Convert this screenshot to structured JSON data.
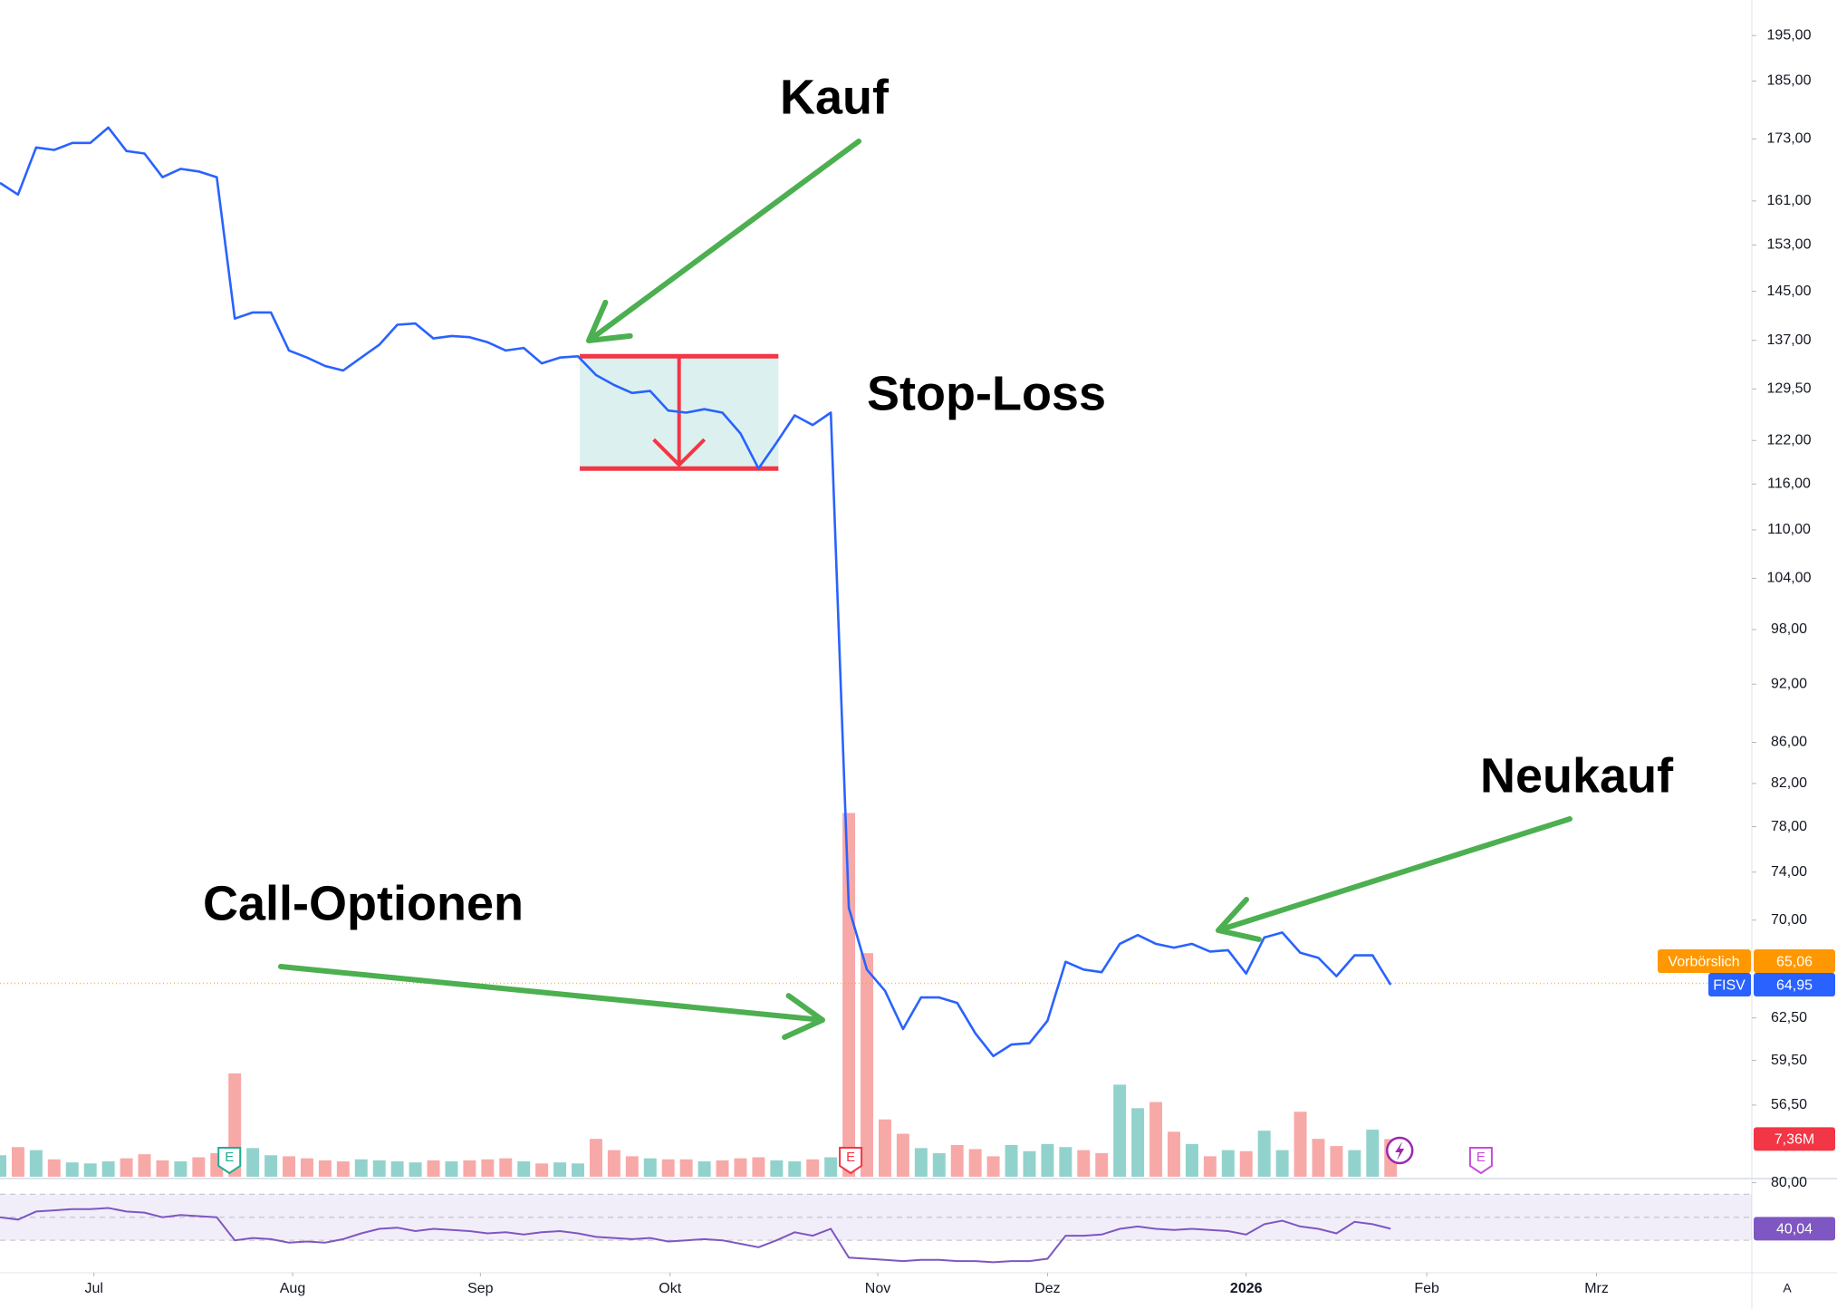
{
  "chart_data": {
    "type": "line",
    "log_scale": true,
    "xlim": [
      0,
      97
    ],
    "xticks": [
      {
        "value": 5.2,
        "label": "Jul"
      },
      {
        "value": 16.2,
        "label": "Aug"
      },
      {
        "value": 26.6,
        "label": "Sep"
      },
      {
        "value": 37.1,
        "label": "Okt"
      },
      {
        "value": 48.6,
        "label": "Nov"
      },
      {
        "value": 58.0,
        "label": "Dez"
      },
      {
        "value": 69.0,
        "label": "2026"
      },
      {
        "value": 79.0,
        "label": "Feb"
      },
      {
        "value": 88.4,
        "label": "Mrz"
      }
    ],
    "ylim": [
      52,
      203.2
    ],
    "yticks": [
      {
        "value": 195,
        "label": "195,00"
      },
      {
        "value": 185,
        "label": "185,00"
      },
      {
        "value": 173,
        "label": "173,00"
      },
      {
        "value": 161,
        "label": "161,00"
      },
      {
        "value": 153,
        "label": "153,00"
      },
      {
        "value": 145,
        "label": "145,00"
      },
      {
        "value": 137,
        "label": "137,00"
      },
      {
        "value": 129.5,
        "label": "129,50"
      },
      {
        "value": 122,
        "label": "122,00"
      },
      {
        "value": 116,
        "label": "116,00"
      },
      {
        "value": 110,
        "label": "110,00"
      },
      {
        "value": 104,
        "label": "104,00"
      },
      {
        "value": 98,
        "label": "98,00"
      },
      {
        "value": 92,
        "label": "92,00"
      },
      {
        "value": 86,
        "label": "86,00"
      },
      {
        "value": 82,
        "label": "82,00"
      },
      {
        "value": 78,
        "label": "78,00"
      },
      {
        "value": 74,
        "label": "74,00"
      },
      {
        "value": 70,
        "label": "70,00"
      },
      {
        "value": 62.5,
        "label": "62,50"
      },
      {
        "value": 59.5,
        "label": "59,50"
      },
      {
        "value": 56.5,
        "label": "56,50"
      }
    ],
    "y2lim": [
      0,
      230
    ],
    "series": [
      {
        "name": "FISV",
        "color": "#2962ff",
        "last_label": "64,95",
        "values": [
          164.4,
          162.2,
          171.3,
          170.8,
          172.2,
          172.2,
          175.3,
          170.6,
          170.1,
          165.5,
          167.1,
          166.6,
          165.5,
          140.5,
          141.5,
          141.5,
          135.4,
          134.3,
          133.0,
          132.3,
          134.3,
          136.3,
          139.5,
          139.7,
          137.3,
          137.7,
          137.5,
          136.7,
          135.4,
          135.8,
          133.4,
          134.3,
          134.5,
          131.6,
          130.1,
          128.9,
          129.2,
          126.3,
          126.0,
          126.5,
          126.0,
          123.0,
          118.1,
          121.7,
          125.6,
          124.2,
          126.0,
          71.0,
          66.1,
          64.5,
          61.7,
          64.0,
          64.0,
          63.6,
          61.4,
          59.8,
          60.6,
          60.7,
          62.3,
          66.7,
          66.1,
          65.9,
          68.1,
          68.8,
          68.1,
          67.8,
          68.1,
          67.5,
          67.6,
          65.8,
          68.6,
          69.0,
          67.4,
          67.0,
          65.6,
          67.2,
          67.2,
          64.95
        ]
      },
      {
        "type": "bar",
        "axis": "y2",
        "up_color": "#92d2cc",
        "down_color": "#f7a9a8",
        "last_label": "7,36M",
        "last_color": "#f23645",
        "values": [
          4.2,
          5.8,
          5.2,
          3.4,
          2.8,
          2.6,
          3.0,
          3.6,
          4.4,
          3.2,
          3.0,
          3.8,
          4.6,
          20.2,
          5.6,
          4.2,
          4.0,
          3.6,
          3.2,
          3.0,
          3.4,
          3.2,
          3.0,
          2.8,
          3.2,
          3.0,
          3.2,
          3.4,
          3.6,
          3.0,
          2.6,
          2.8,
          2.6,
          7.4,
          5.2,
          4.0,
          3.6,
          3.4,
          3.4,
          3.0,
          3.2,
          3.6,
          3.8,
          3.2,
          3.0,
          3.4,
          3.8,
          71.1,
          43.7,
          11.2,
          8.4,
          5.6,
          4.6,
          6.2,
          5.4,
          4.0,
          6.2,
          5.0,
          6.4,
          5.8,
          5.2,
          4.6,
          18.0,
          13.4,
          14.6,
          8.8,
          6.4,
          4.0,
          5.2,
          5.0,
          9.0,
          5.2,
          12.7,
          7.4,
          6.0,
          5.2,
          9.2,
          7.36
        ]
      }
    ],
    "premarket": {
      "label": "Vorbörslich",
      "value": 65.06,
      "value_label": "65,06",
      "color": "#ff9800"
    },
    "events": [
      {
        "label": "E",
        "x": 12.7,
        "color": "#22ab94"
      },
      {
        "label": "E",
        "x": 47.1,
        "color": "#f23645"
      },
      {
        "label": "E",
        "x": 82.0,
        "color": "#c74ddb",
        "outline": true
      }
    ],
    "stop_box": {
      "x": [
        32.1,
        43.1
      ],
      "y": [
        134.5,
        118.1
      ],
      "line_color": "#f23645",
      "fill": "rgba(38,166,154,0.16)"
    },
    "annotations": [
      {
        "text": "Kauf"
      },
      {
        "text": "Stop-Loss"
      },
      {
        "text": "Call-Optionen"
      },
      {
        "text": "Neukauf"
      }
    ],
    "rsi": {
      "type": "line",
      "color": "#7e57c2",
      "ylim": [
        5,
        82
      ],
      "yticks": [
        {
          "value": 80,
          "label": "80,00"
        }
      ],
      "bands": [
        30,
        50,
        70
      ],
      "last_label": "40,04",
      "values": [
        50,
        48,
        55,
        56,
        57,
        57,
        58,
        55,
        54,
        50,
        52,
        51,
        50,
        30,
        32,
        31,
        28,
        29,
        28,
        31,
        36,
        40,
        41,
        38,
        40,
        39,
        38,
        36,
        37,
        35,
        37,
        38,
        36,
        33,
        32,
        31,
        32,
        29,
        30,
        31,
        30,
        27,
        24,
        30,
        37,
        34,
        40,
        15,
        14,
        13,
        12,
        13,
        13,
        12,
        12,
        11,
        12,
        12,
        14,
        34,
        34,
        35,
        40,
        42,
        40,
        39,
        40,
        39,
        38,
        35,
        44,
        47,
        42,
        40,
        36,
        46,
        44,
        40.04
      ]
    },
    "corner_label": "A"
  }
}
